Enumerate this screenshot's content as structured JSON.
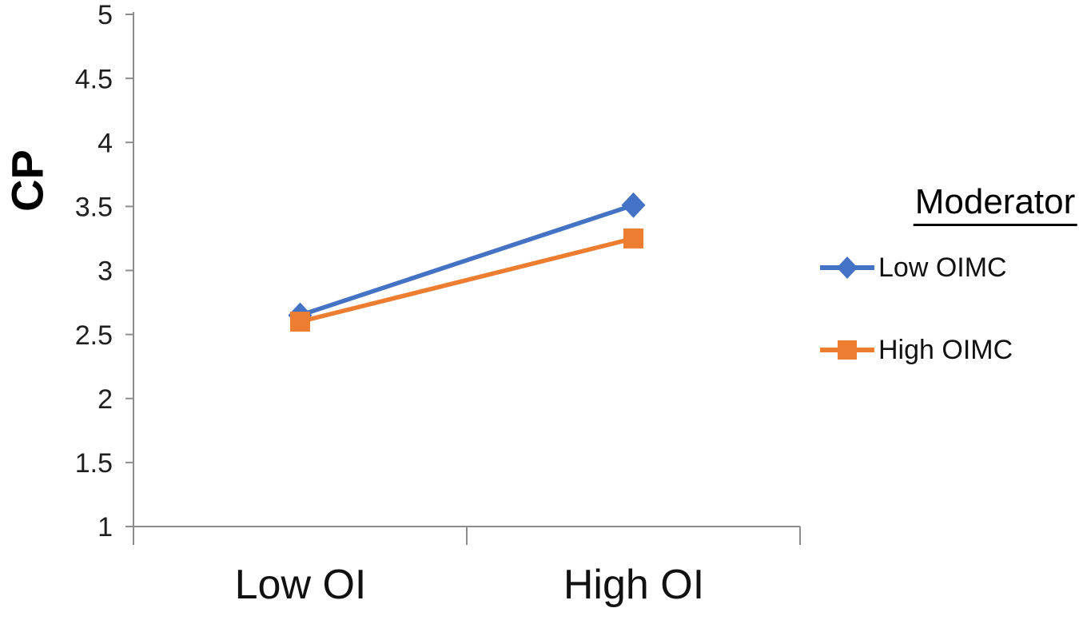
{
  "chart_data": {
    "type": "line",
    "title": "",
    "categories": [
      "Low OI",
      "High OI"
    ],
    "series": [
      {
        "name": "Low OIMC",
        "values": [
          2.65,
          3.51
        ],
        "color": "#4472C4",
        "marker": "diamond"
      },
      {
        "name": "High OIMC",
        "values": [
          2.6,
          3.25
        ],
        "color": "#ED7D31",
        "marker": "square"
      }
    ],
    "xlabel": "",
    "ylabel": "CP",
    "ylim": [
      1,
      5
    ],
    "ytick_step": 0.5,
    "ytick_labels": [
      "1",
      "1.5",
      "2",
      "2.5",
      "3",
      "3.5",
      "4",
      "4.5",
      "5"
    ],
    "grid": false,
    "legend": {
      "title": "Moderator",
      "position": "right",
      "entries": [
        "Low OIMC",
        "High OIMC"
      ]
    },
    "axis_color": "#8c8c8c",
    "text_color": "#1f1f1f",
    "background": "#ffffff"
  }
}
